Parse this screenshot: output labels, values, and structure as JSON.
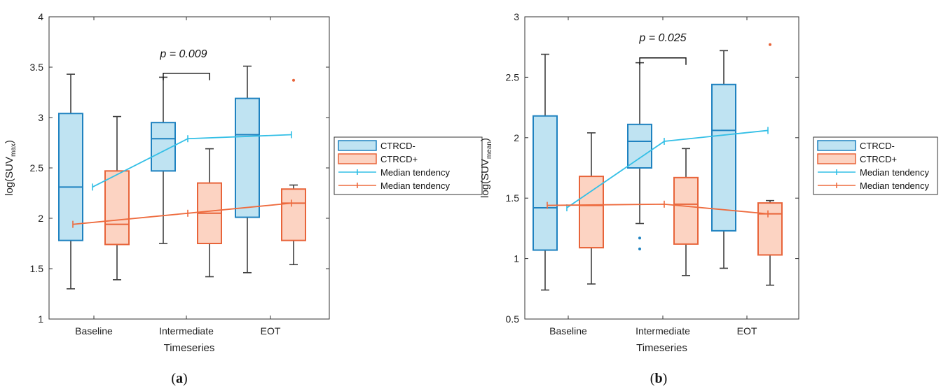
{
  "colors": {
    "ctrcd_neg_fill": "#bfe3f2",
    "ctrcd_neg_edge": "#1f82c0",
    "ctrcd_pos_fill": "#fcd3c2",
    "ctrcd_pos_edge": "#e8643a",
    "median_neg_line": "#33bfe6",
    "median_pos_line": "#ee6b3e",
    "whisker": "#404040",
    "axis": "#333333"
  },
  "chart_data": [
    {
      "panel_label": "a",
      "type": "box",
      "xlabel": "Timeseries",
      "ylabel": "log(SUV",
      "ylabel_sub": "max",
      "ylabel_close": ")",
      "ylim": [
        1,
        4
      ],
      "yticks": [
        1,
        1.5,
        2,
        2.5,
        3,
        3.5,
        4
      ],
      "categories": [
        "Baseline",
        "Intermediate",
        "EOT"
      ],
      "series": [
        {
          "name": "CTRCD-",
          "boxes": [
            {
              "category": "Baseline",
              "whisker_low": 1.3,
              "q1": 1.78,
              "median": 2.31,
              "q3": 3.04,
              "whisker_high": 3.43,
              "outliers": []
            },
            {
              "category": "Intermediate",
              "whisker_low": 1.75,
              "q1": 2.47,
              "median": 2.79,
              "q3": 2.95,
              "whisker_high": 3.4,
              "outliers": []
            },
            {
              "category": "EOT",
              "whisker_low": 1.46,
              "q1": 2.01,
              "median": 2.83,
              "q3": 3.19,
              "whisker_high": 3.51,
              "outliers": []
            }
          ]
        },
        {
          "name": "CTRCD+",
          "boxes": [
            {
              "category": "Baseline",
              "whisker_low": 1.39,
              "q1": 1.74,
              "median": 1.94,
              "q3": 2.47,
              "whisker_high": 3.01,
              "outliers": []
            },
            {
              "category": "Intermediate",
              "whisker_low": 1.42,
              "q1": 1.75,
              "median": 2.05,
              "q3": 2.35,
              "whisker_high": 2.69,
              "outliers": []
            },
            {
              "category": "EOT",
              "whisker_low": 1.54,
              "q1": 1.78,
              "median": 2.15,
              "q3": 2.29,
              "whisker_high": 2.33,
              "outliers": [
                3.37
              ]
            }
          ]
        }
      ],
      "median_tendency": [
        {
          "name": "Median tendency",
          "of": "CTRCD-",
          "values": [
            2.31,
            2.79,
            2.83
          ]
        },
        {
          "name": "Median tendency",
          "of": "CTRCD+",
          "values": [
            1.94,
            2.05,
            2.15
          ]
        }
      ],
      "annotation": {
        "text": "p = 0.009",
        "between": "Intermediate",
        "bracket_y": 3.44
      },
      "legend": {
        "position": "right",
        "entries": [
          "CTRCD-",
          "CTRCD+",
          "Median tendency",
          "Median tendency"
        ]
      }
    },
    {
      "panel_label": "b",
      "type": "box",
      "xlabel": "Timeseries",
      "ylabel": "log(SUV",
      "ylabel_sub": "mean",
      "ylabel_close": ")",
      "ylim": [
        0.5,
        3
      ],
      "yticks": [
        0.5,
        1,
        1.5,
        2,
        2.5,
        3
      ],
      "categories": [
        "Baseline",
        "Intermediate",
        "EOT"
      ],
      "series": [
        {
          "name": "CTRCD-",
          "boxes": [
            {
              "category": "Baseline",
              "whisker_low": 0.74,
              "q1": 1.07,
              "median": 1.42,
              "q3": 2.18,
              "whisker_high": 2.69,
              "outliers": []
            },
            {
              "category": "Intermediate",
              "whisker_low": 1.29,
              "q1": 1.75,
              "median": 1.97,
              "q3": 2.11,
              "whisker_high": 2.62,
              "outliers": [
                1.17,
                1.08
              ]
            },
            {
              "category": "EOT",
              "whisker_low": 0.92,
              "q1": 1.23,
              "median": 2.06,
              "q3": 2.44,
              "whisker_high": 2.72,
              "outliers": []
            }
          ]
        },
        {
          "name": "CTRCD+",
          "boxes": [
            {
              "category": "Baseline",
              "whisker_low": 0.79,
              "q1": 1.09,
              "median": 1.44,
              "q3": 1.68,
              "whisker_high": 2.04,
              "outliers": []
            },
            {
              "category": "Intermediate",
              "whisker_low": 0.86,
              "q1": 1.12,
              "median": 1.45,
              "q3": 1.67,
              "whisker_high": 1.91,
              "outliers": []
            },
            {
              "category": "EOT",
              "whisker_low": 0.78,
              "q1": 1.03,
              "median": 1.37,
              "q3": 1.46,
              "whisker_high": 1.48,
              "outliers": [
                2.77
              ]
            }
          ]
        }
      ],
      "median_tendency": [
        {
          "name": "Median tendency",
          "of": "CTRCD-",
          "values": [
            1.42,
            1.97,
            2.06
          ]
        },
        {
          "name": "Median tendency",
          "of": "CTRCD+",
          "values": [
            1.44,
            1.45,
            1.37
          ]
        }
      ],
      "annotation": {
        "text": "p = 0.025",
        "between": "Intermediate",
        "bracket_y": 2.66
      },
      "legend": {
        "position": "right",
        "entries": [
          "CTRCD-",
          "CTRCD+",
          "Median tendency",
          "Median tendency"
        ]
      }
    }
  ]
}
